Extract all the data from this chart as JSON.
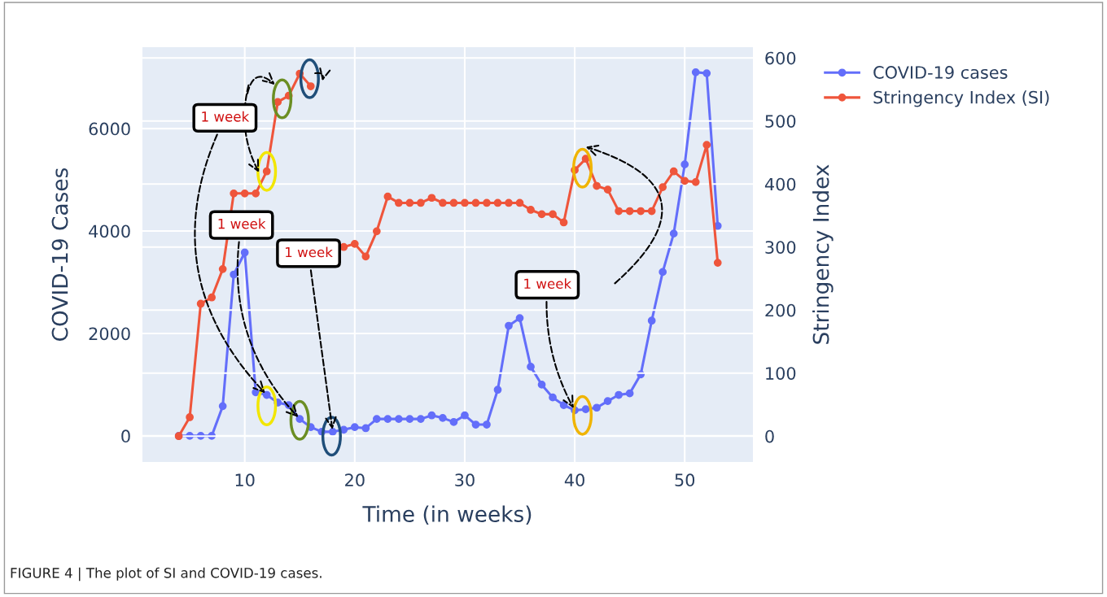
{
  "chart_data": {
    "type": "line",
    "xlabel": "Time (in weeks)",
    "ylabel": "COVID-19 Cases",
    "y2label": "Stringency Index",
    "x": [
      4,
      5,
      6,
      7,
      8,
      9,
      10,
      11,
      12,
      13,
      14,
      15,
      16,
      17,
      18,
      19,
      20,
      21,
      22,
      23,
      24,
      25,
      26,
      27,
      28,
      29,
      30,
      31,
      32,
      33,
      34,
      35,
      36,
      37,
      38,
      39,
      40,
      41,
      42,
      43,
      44,
      45,
      46,
      47,
      48,
      49,
      50,
      51,
      52,
      53
    ],
    "series": [
      {
        "name": "COVID-19 cases",
        "color": "#636efa",
        "values": [
          0,
          0,
          0,
          0,
          580,
          3150,
          3580,
          850,
          800,
          650,
          600,
          330,
          170,
          80,
          80,
          120,
          170,
          150,
          330,
          330,
          330,
          330,
          330,
          400,
          350,
          270,
          400,
          220,
          220,
          900,
          2150,
          2300,
          1350,
          1000,
          750,
          600,
          500,
          520,
          550,
          680,
          800,
          830,
          1200,
          2250,
          3200,
          3950,
          5300,
          7100,
          7080,
          4100
        ]
      },
      {
        "name": "Stringency Index (SI)",
        "color": "#ef553b",
        "axis": "y2",
        "values": [
          0,
          30,
          210,
          220,
          265,
          385,
          385,
          385,
          420,
          530,
          540,
          575,
          555,
          null,
          null,
          300,
          305,
          285,
          325,
          380,
          370,
          370,
          370,
          378,
          370,
          370,
          370,
          370,
          370,
          370,
          370,
          370,
          359,
          352,
          352,
          339,
          422,
          440,
          397,
          391,
          357,
          357,
          357,
          357,
          395,
          420,
          405,
          403,
          462,
          275
        ]
      }
    ],
    "xlim": [
      0.7,
      56.2
    ],
    "xticks": [
      10,
      20,
      30,
      40,
      50
    ],
    "ylim": [
      -510,
      7590
    ],
    "yticks": [
      0,
      2000,
      4000,
      6000
    ],
    "y2lim": [
      -41,
      617
    ],
    "y2ticks": [
      0,
      100,
      200,
      300,
      400,
      500,
      600
    ],
    "grid": true,
    "legend": "top right",
    "marker": "circle",
    "line_style": "solid",
    "annotations": [
      {
        "text": "1 week",
        "x": 12,
        "y": 800
      },
      {
        "text": "1 week",
        "x": 15,
        "y": 330
      },
      {
        "text": "1 week",
        "x": 18,
        "y": 80
      },
      {
        "text": "1 week",
        "x": 40,
        "y": 500
      },
      "FIGURE 4 | The plot of SI and COVID-19 cases."
    ]
  }
}
